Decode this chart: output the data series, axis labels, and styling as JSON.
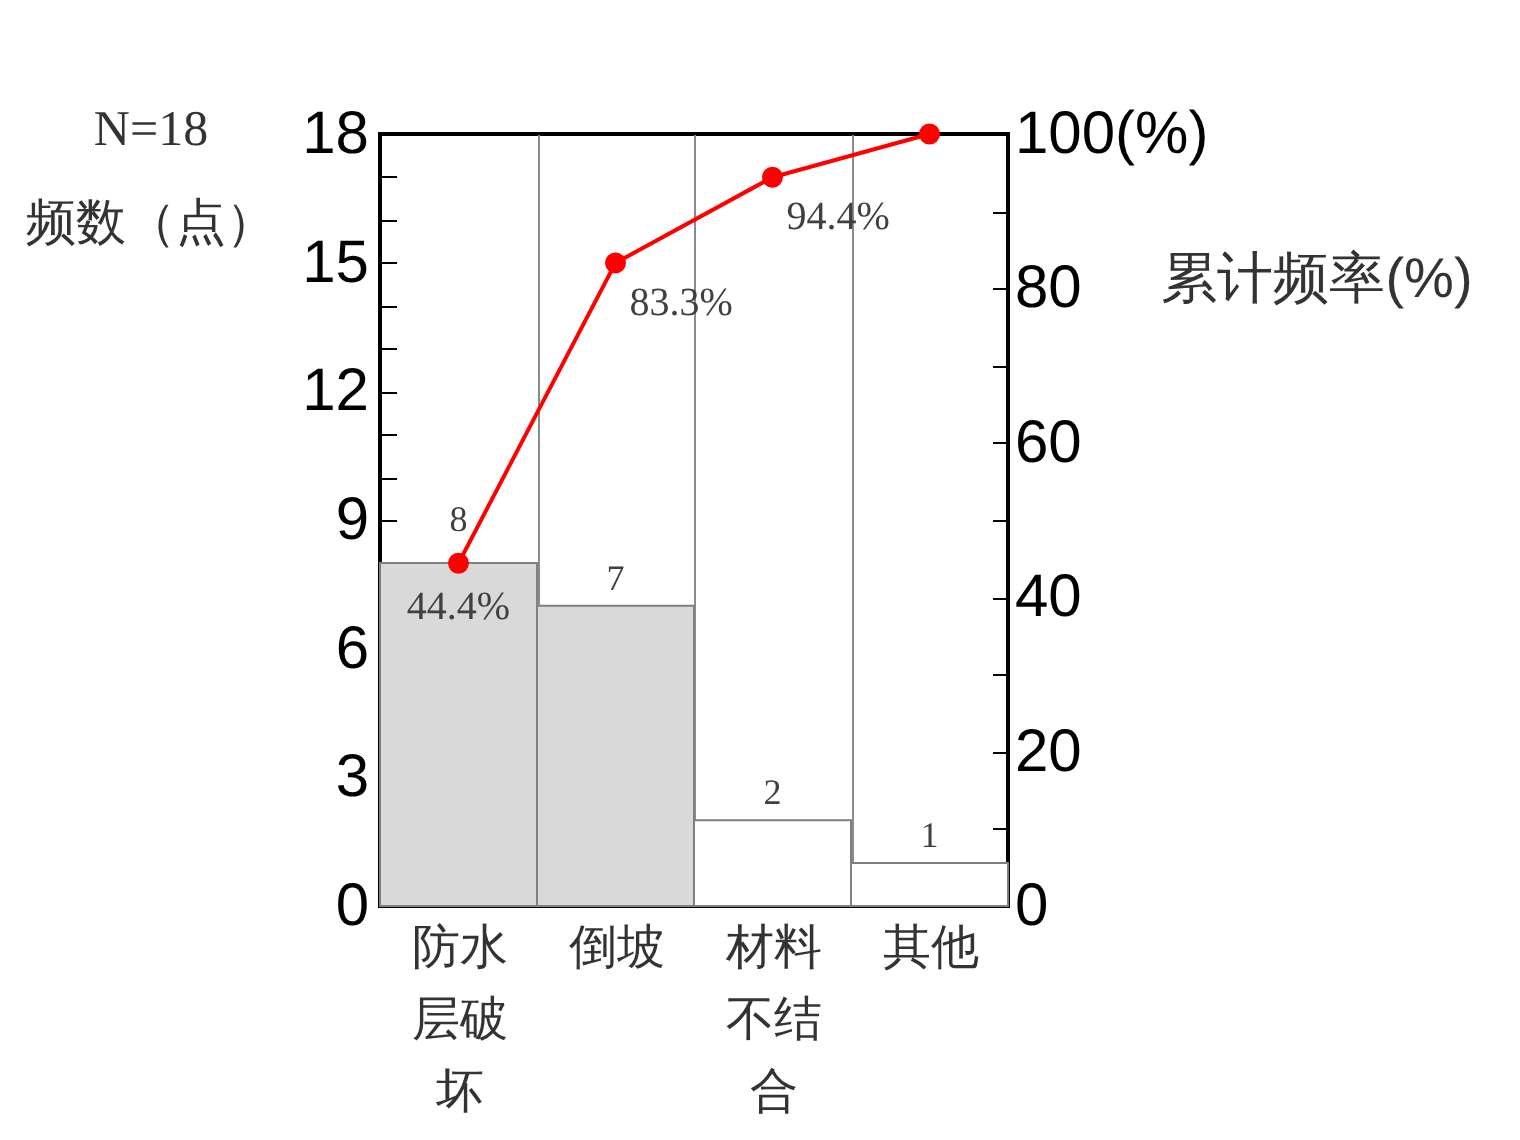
{
  "chart_data": {
    "type": "bar",
    "categories": [
      "防水层破坏",
      "倒坡",
      "材料不结合",
      "其他"
    ],
    "series": [
      {
        "colors": [
          "#d9d9d9",
          "#d9d9d9",
          "#ffffff",
          "#ffffff"
        ],
        "values": [
          8,
          7,
          2,
          1
        ],
        "value_labels": [
          "8",
          "7",
          "2",
          "1"
        ]
      },
      {
        "type": "line",
        "axis": "y2",
        "color": "#ff0000",
        "marker": "circle",
        "values": [
          44.4,
          83.3,
          94.4,
          100
        ],
        "value_labels": [
          "44.4%",
          "83.3%",
          "94.4%",
          null
        ]
      }
    ],
    "ylabel": "N=18\n频数（点）",
    "y2label": "累计频率(%)",
    "ylim": [
      0,
      18
    ],
    "yticks": [
      0,
      {
        "value": 1,
        "label": null
      },
      {
        "value": 2,
        "label": null
      },
      3,
      {
        "value": 4,
        "label": null
      },
      {
        "value": 5,
        "label": null
      },
      6,
      {
        "value": 7,
        "label": null
      },
      {
        "value": 8,
        "label": null
      },
      9,
      {
        "value": 10,
        "label": null
      },
      {
        "value": 11,
        "label": null
      },
      12,
      {
        "value": 13,
        "label": null
      },
      {
        "value": 14,
        "label": null
      },
      15,
      {
        "value": 16,
        "label": null
      },
      {
        "value": 17,
        "label": null
      },
      18
    ],
    "y2lim": [
      0,
      100
    ],
    "y2ticks": [
      0,
      {
        "value": 10,
        "label": null
      },
      20,
      {
        "value": 30,
        "label": null
      },
      40,
      {
        "value": 50,
        "label": null
      },
      60,
      {
        "value": 70,
        "label": null
      },
      80,
      {
        "value": 90,
        "label": null
      },
      {
        "value": 100,
        "label": "100(%)"
      }
    ],
    "grid": "x"
  }
}
